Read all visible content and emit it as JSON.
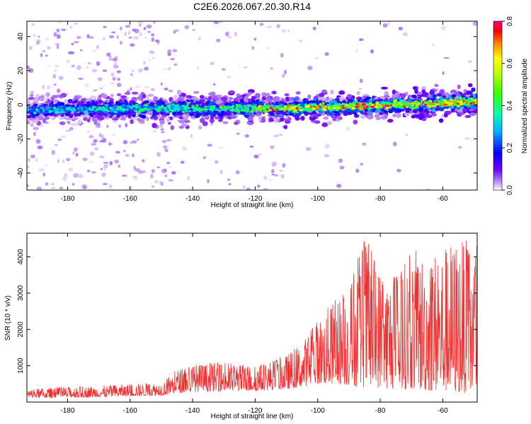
{
  "figure": {
    "title": "C2E6.2026.067.20.30.R14"
  },
  "chart_data": [
    {
      "type": "heatmap",
      "xlabel": "Height of straight line (km)",
      "ylabel": "Frequency (Hz)",
      "xlim": [
        -193,
        -49
      ],
      "ylim": [
        -50,
        49
      ],
      "xticks": [
        -180,
        -160,
        -140,
        -120,
        -100,
        -80,
        -60
      ],
      "yticks": [
        -40,
        -20,
        0,
        20,
        40
      ],
      "colorbar": {
        "label": "Normalized spectral amplitude",
        "range": [
          0.0,
          0.8
        ],
        "ticks": [
          "0.0",
          "0.2",
          "0.4",
          "0.6",
          "0.8"
        ],
        "colormap": [
          "#ffffff",
          "#c8a0f0",
          "#7000ff",
          "#0000ff",
          "#00c8ff",
          "#00ff80",
          "#80ff00",
          "#ffff00",
          "#ff8000",
          "#ff0000",
          "#ff0080"
        ]
      },
      "band": {
        "description_values": "energy concentrated near 0 Hz, center frequency drifting from about -3 Hz at -190 km to about +2 Hz at -50 km",
        "center_freq_at_x": [
          [
            -190,
            -3
          ],
          [
            -150,
            -2
          ],
          [
            -110,
            -2
          ],
          [
            -90,
            -1
          ],
          [
            -70,
            0
          ],
          [
            -50,
            2
          ]
        ],
        "peak_amplitude_approx": 0.8
      }
    },
    {
      "type": "line",
      "xlabel": "Height of straight line (km)",
      "ylabel": "SNR (10 * v/v)",
      "xlim": [
        -193,
        -49
      ],
      "ylim": [
        0,
        4650
      ],
      "xticks": [
        -180,
        -160,
        -140,
        -120,
        -100,
        -80,
        -60
      ],
      "yticks": [
        1000,
        2000,
        3000,
        4000
      ],
      "line_color": "#f03030",
      "envelope": [
        [
          -193,
          120,
          350
        ],
        [
          -180,
          120,
          420
        ],
        [
          -170,
          140,
          450
        ],
        [
          -160,
          160,
          500
        ],
        [
          -150,
          180,
          550
        ],
        [
          -145,
          250,
          900
        ],
        [
          -140,
          280,
          1050
        ],
        [
          -130,
          300,
          1100
        ],
        [
          -120,
          300,
          1000
        ],
        [
          -110,
          350,
          1300
        ],
        [
          -105,
          420,
          1650
        ],
        [
          -100,
          500,
          2300
        ],
        [
          -95,
          500,
          2800
        ],
        [
          -90,
          450,
          3200
        ],
        [
          -85,
          400,
          4600
        ],
        [
          -80,
          400,
          3700
        ],
        [
          -75,
          350,
          3500
        ],
        [
          -70,
          350,
          4200
        ],
        [
          -65,
          300,
          4200
        ],
        [
          -60,
          300,
          4300
        ],
        [
          -55,
          250,
          4600
        ],
        [
          -50,
          250,
          4300
        ]
      ]
    }
  ]
}
